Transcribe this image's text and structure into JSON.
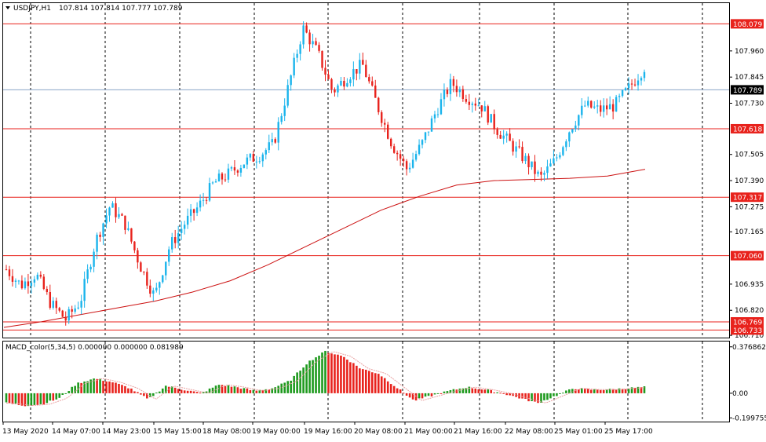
{
  "header": {
    "symbol": "USDJPY,H1",
    "ohlc": "107.814 107.814 107.777 107.789"
  },
  "macd": {
    "label": "MACD_color(5,34,5) 0.000000 0.000000 0.081989",
    "axis_labels": [
      "0.376862",
      "0.00",
      "-0.199755"
    ]
  },
  "colors": {
    "bull": "#1ab4ec",
    "bear": "#e8221c",
    "level_line": "#e8221c",
    "ma": "#cc1111",
    "bid_line": "#8aa4c8",
    "macd_green": "#1e9a1e",
    "macd_red": "#e8221c",
    "grid": "#000000"
  },
  "chart_data": {
    "type": "candlestick",
    "price_axis_labels": [
      "107.960",
      "107.845",
      "107.730",
      "107.505",
      "107.390",
      "107.275",
      "107.165",
      "106.935",
      "106.820",
      "106.710"
    ],
    "levels": [
      {
        "label": "108.079",
        "value": 108.079
      },
      {
        "label": "107.618",
        "value": 107.618
      },
      {
        "label": "107.317",
        "value": 107.317
      },
      {
        "label": "107.060",
        "value": 107.06
      },
      {
        "label": "106.769",
        "value": 106.769
      },
      {
        "label": "106.733",
        "value": 106.733
      }
    ],
    "current_price": {
      "label": "107.789",
      "value": 107.789
    },
    "time_labels": [
      "13 May 2020",
      "14 May 07:00",
      "14 May 23:00",
      "15 May 15:00",
      "18 May 08:00",
      "19 May 00:00",
      "19 May 16:00",
      "20 May 08:00",
      "21 May 00:00",
      "21 May 16:00",
      "22 May 08:00",
      "25 May 01:00",
      "25 May 17:00"
    ],
    "price_path": [
      107.0,
      106.93,
      106.98,
      106.85,
      106.78,
      106.86,
      107.12,
      107.28,
      107.2,
      107.02,
      106.88,
      107.1,
      107.2,
      107.28,
      107.38,
      107.42,
      107.47,
      107.5,
      107.55,
      107.8,
      108.06,
      107.95,
      107.78,
      107.85,
      107.9,
      107.72,
      107.55,
      107.44,
      107.55,
      107.7,
      107.82,
      107.76,
      107.72,
      107.62,
      107.55,
      107.48,
      107.4,
      107.48,
      107.62,
      107.72,
      107.7,
      107.72,
      107.8,
      107.89
    ],
    "ma_path": [
      106.745,
      106.77,
      106.8,
      106.83,
      106.86,
      106.9,
      106.95,
      107.02,
      107.1,
      107.18,
      107.26,
      107.32,
      107.37,
      107.39,
      107.395,
      107.4,
      107.41,
      107.44
    ],
    "macd_path": [
      -0.08,
      -0.1,
      -0.09,
      -0.04,
      0.08,
      0.12,
      0.09,
      0.04,
      -0.05,
      0.06,
      0.03,
      0.0,
      0.07,
      0.05,
      0.02,
      0.04,
      0.1,
      0.25,
      0.34,
      0.3,
      0.2,
      0.16,
      0.05,
      -0.06,
      -0.02,
      0.02,
      0.05,
      0.03,
      0.0,
      -0.04,
      -0.08,
      -0.02,
      0.04,
      0.03,
      0.03,
      0.04,
      0.05
    ]
  }
}
